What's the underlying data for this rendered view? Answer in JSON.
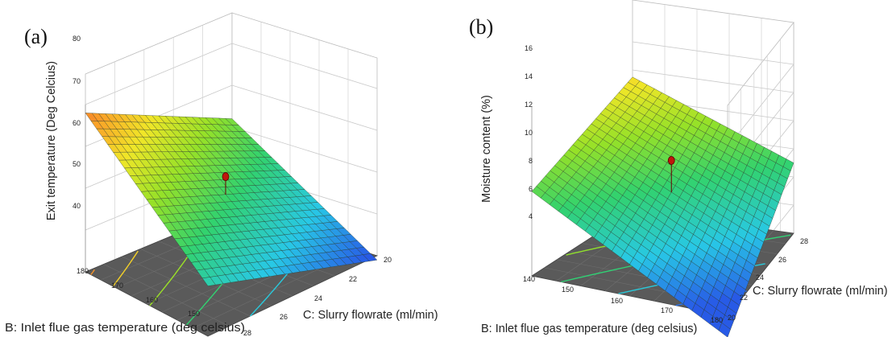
{
  "figure": {
    "panels": [
      {
        "label": "(a)"
      },
      {
        "label": "(b)"
      }
    ]
  },
  "chart_data": [
    {
      "type": "surface",
      "panel": "(a)",
      "zlabel": "Exit temperature (Deg Celcius)",
      "xlabel": "B: Inlet flue gas temperature (deg celsius)",
      "ylabel": "C: Slurry flowrate (ml/min)",
      "x_ticks": [
        "180",
        "170",
        "160",
        "150"
      ],
      "y_ticks": [
        "20",
        "22",
        "24",
        "26",
        "28"
      ],
      "z_ticks": [
        "40",
        "50",
        "60",
        "70",
        "80"
      ],
      "xlim": [
        150,
        180
      ],
      "ylim": [
        20,
        28
      ],
      "zlim": [
        40,
        80
      ],
      "corner_values": {
        "x150_y20": 52,
        "x150_y28": 39,
        "x180_y20": 78,
        "x180_y28": 62
      },
      "design_point": {
        "x": 165,
        "y": 24,
        "z": 62
      },
      "grid": true,
      "colormap": "blue-green-yellow-orange",
      "contour_floor": true
    },
    {
      "type": "surface",
      "panel": "(b)",
      "zlabel": "Moisture content (%)",
      "xlabel": "B: Inlet flue gas temperature (deg celsius)",
      "ylabel": "C: Slurry flowrate (ml/min)",
      "x_ticks": [
        "140",
        "150",
        "160",
        "170",
        "180"
      ],
      "y_ticks": [
        "20",
        "22",
        "24",
        "26",
        "28"
      ],
      "z_ticks": [
        "4",
        "6",
        "8",
        "10",
        "12",
        "14",
        "16"
      ],
      "xlim": [
        140,
        180
      ],
      "ylim": [
        20,
        28
      ],
      "zlim": [
        4,
        16
      ],
      "corner_values": {
        "x140_y20": 10,
        "x140_y28": 13.5,
        "x180_y20": 2.5,
        "x180_y28": 9
      },
      "design_point": {
        "x": 160,
        "y": 24,
        "z": 11
      },
      "grid": true,
      "colormap": "blue-green-yellow-orange",
      "contour_floor": true
    }
  ]
}
